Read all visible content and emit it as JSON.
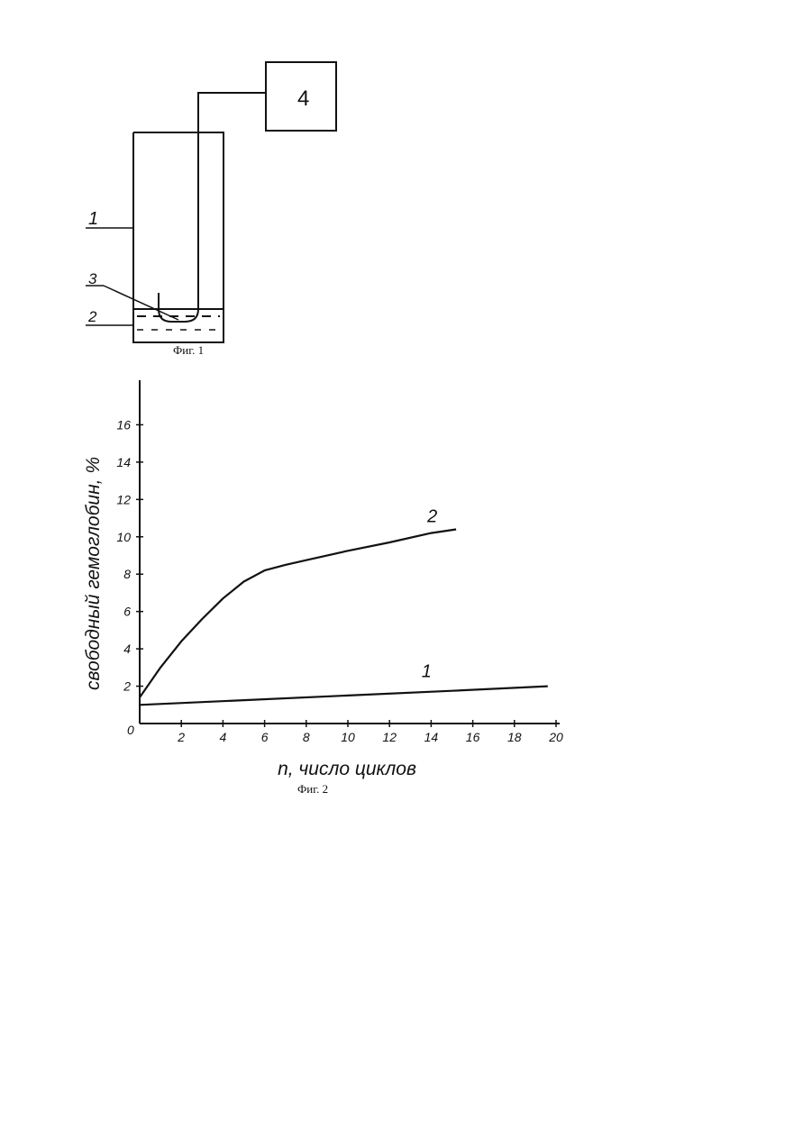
{
  "figure1": {
    "caption": "Фиг. 1",
    "labels": {
      "vessel": "1",
      "liquid": "2",
      "probe": "3",
      "device": "4"
    }
  },
  "figure2": {
    "caption": "Фиг. 2",
    "colors": {
      "ink": "#111111"
    },
    "chart_data": {
      "type": "line",
      "xlabel": "n, число циклов",
      "ylabel": "свободный гемоглобин, %",
      "xlim": [
        0,
        20
      ],
      "ylim": [
        0,
        18
      ],
      "xticks": [
        2,
        4,
        6,
        8,
        10,
        12,
        14,
        16,
        18,
        20
      ],
      "yticks": [
        2,
        4,
        6,
        8,
        10,
        12,
        14,
        16
      ],
      "origin_label": "0",
      "grid": false,
      "series": [
        {
          "name": "1",
          "x": [
            0,
            5,
            10,
            15,
            19.6
          ],
          "y": [
            1.0,
            1.25,
            1.5,
            1.75,
            2.0
          ]
        },
        {
          "name": "2",
          "x": [
            0,
            1,
            2,
            3,
            4,
            5,
            6,
            7,
            8,
            10,
            12,
            14,
            15.2
          ],
          "y": [
            1.4,
            3.0,
            4.4,
            5.6,
            6.7,
            7.6,
            8.2,
            8.5,
            8.75,
            9.25,
            9.7,
            10.2,
            10.4
          ]
        }
      ]
    }
  }
}
